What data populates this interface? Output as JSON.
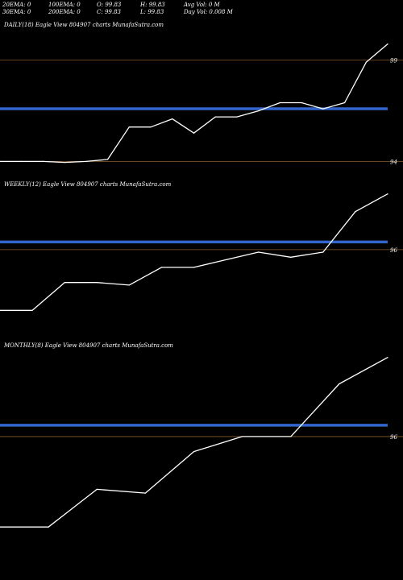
{
  "header": {
    "row1": [
      "20EMA: 0",
      "100EMA: 0",
      "O: 99.83",
      "H: 99.83",
      "Avg Vol: 0  M"
    ],
    "row2": [
      "30EMA: 0",
      "200EMA: 0",
      "C: 99.83",
      "L: 99.83",
      "Day Vol: 0.008 M"
    ]
  },
  "colors": {
    "background": "#000000",
    "price_line": "#ffffff",
    "ema_band": "#3366cc",
    "level_line": "#8b5a2b"
  },
  "chart_data": [
    {
      "type": "line",
      "title": "DAILY(18) Eagle  View  804907 charts MunafaSutra.com",
      "ylim": [
        93.1,
        100.9
      ],
      "levels": [
        {
          "value": 99,
          "label": "99"
        },
        {
          "value": 94,
          "label": "94"
        }
      ],
      "band": 96.6,
      "series": [
        {
          "values": [
            94.0,
            94.0,
            94.0,
            93.95,
            94.0,
            94.1,
            95.7,
            95.7,
            96.1,
            95.4,
            96.2,
            96.2,
            96.5,
            96.9,
            96.9,
            96.6,
            96.9,
            98.9,
            99.8
          ]
        }
      ]
    },
    {
      "type": "line",
      "title": "WEEKLY(12) Eagle  View  804907 charts MunafaSutra.com",
      "ylim": [
        92.4,
        98.7
      ],
      "levels": [
        {
          "value": 96,
          "label": "96"
        }
      ],
      "band": 96.3,
      "series": [
        {
          "values": [
            93.6,
            93.6,
            94.7,
            94.7,
            94.6,
            95.3,
            95.3,
            95.6,
            95.9,
            95.7,
            95.9,
            97.5,
            98.2
          ]
        }
      ]
    },
    {
      "type": "line",
      "title": "MONTHLY(8) Eagle  View  804907 charts MunafaSutra.com",
      "ylim": [
        92.3,
        98.5
      ],
      "levels": [
        {
          "value": 96,
          "label": "96"
        }
      ],
      "band": 96.3,
      "series": [
        {
          "values": [
            93.6,
            93.6,
            94.6,
            94.5,
            95.6,
            96.0,
            96.0,
            97.4,
            98.1
          ]
        }
      ]
    }
  ]
}
